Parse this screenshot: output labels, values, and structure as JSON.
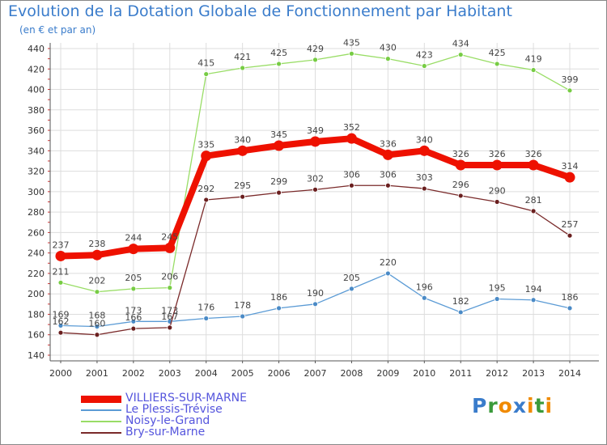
{
  "header": {
    "title": "Evolution de la Dotation Globale de Fonctionnement par Habitant",
    "subtitle": "(en € et par an)"
  },
  "colors": {
    "title": "#3a7ccb",
    "grid": "#dddddd",
    "axis": "#555555",
    "tick_text": "#333333",
    "minor_tick": "#cc3333",
    "value_label": "#444444"
  },
  "chart_data": {
    "type": "line",
    "title": "Evolution de la Dotation Globale de Fonctionnement par Habitant",
    "subtitle": "(en € et par an)",
    "xlabel": "",
    "ylabel": "",
    "x": [
      "2000",
      "2001",
      "2002",
      "2003",
      "2004",
      "2005",
      "2006",
      "2007",
      "2008",
      "2009",
      "2010",
      "2011",
      "2012",
      "2013",
      "2014"
    ],
    "ylim": [
      140,
      440
    ],
    "yticks": [
      "140",
      "160",
      "180",
      "200",
      "220",
      "240",
      "260",
      "280",
      "300",
      "320",
      "340",
      "360",
      "380",
      "400",
      "420",
      "440"
    ],
    "grid": true,
    "legend_position": "bottom-left",
    "series": [
      {
        "name": "VILLIERS-SUR-MARNE",
        "color": "#ee1100",
        "marker_color": "#ee1100",
        "legend_text_color": "#5555dd",
        "emphasis": true,
        "values": [
          237,
          238,
          244,
          245,
          335,
          340,
          345,
          349,
          352,
          336,
          340,
          326,
          326,
          326,
          314
        ]
      },
      {
        "name": "Le Plessis-Trévise",
        "color": "#5b9bd5",
        "marker_color": "#4a8ac6",
        "legend_text_color": "#5555dd",
        "emphasis": false,
        "values": [
          169,
          168,
          173,
          173,
          176,
          178,
          186,
          190,
          205,
          220,
          196,
          182,
          195,
          194,
          186
        ]
      },
      {
        "name": "Noisy-le-Grand",
        "color": "#99dd66",
        "marker_color": "#77cc44",
        "legend_text_color": "#5555dd",
        "emphasis": false,
        "values": [
          211,
          202,
          205,
          206,
          415,
          421,
          425,
          429,
          435,
          430,
          423,
          434,
          425,
          419,
          399
        ]
      },
      {
        "name": "Bry-sur-Marne",
        "color": "#7a2a2a",
        "marker_color": "#6a1f1f",
        "legend_text_color": "#5555dd",
        "emphasis": false,
        "values": [
          162,
          160,
          166,
          167,
          292,
          295,
          299,
          302,
          306,
          306,
          303,
          296,
          290,
          281,
          257
        ]
      }
    ]
  },
  "legend": {
    "items": [
      {
        "label": "VILLIERS-SUR-MARNE"
      },
      {
        "label": "Le Plessis-Trévise"
      },
      {
        "label": "Noisy-le-Grand"
      },
      {
        "label": "Bry-sur-Marne"
      }
    ]
  },
  "logo": {
    "letters": [
      "P",
      "r",
      "o",
      "x",
      "i",
      "t",
      "i"
    ],
    "colors": [
      "#3a7ccb",
      "#3a9a3a",
      "#f08a00",
      "#3a7ccb",
      "#f08a00",
      "#3a9a3a",
      "#f08a00"
    ]
  }
}
